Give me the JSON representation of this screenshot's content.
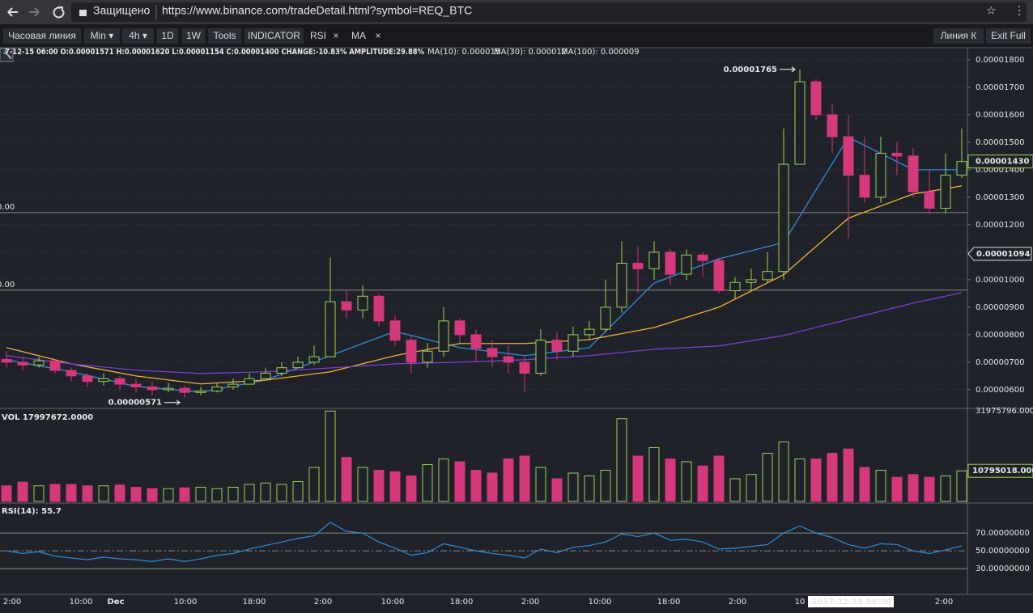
{
  "browser": {
    "secure": "Защищено",
    "url": "https://www.binance.com/tradeDetail.html?symbol=REQ_BTC"
  },
  "toolbar": {
    "items": [
      "Часовая линия",
      "Min ▾",
      "4h ▾",
      "1D",
      "1W",
      "Tools",
      "INDICATOR",
      "RSI",
      "×",
      "MA",
      "×"
    ],
    "right": [
      "Линия К",
      "Exit Full"
    ]
  },
  "time_axis": [
    "2:00",
    "10:00",
    "Dec",
    "10:00",
    "18:00",
    "2:00",
    "10:00",
    "18:00",
    "2:00",
    "10:00",
    "18:00",
    "2:00",
    "10",
    "2017-12-15 06:00",
    "2:00"
  ],
  "chart_data": [
    {
      "type": "candlestick",
      "info": "7-12-15 06:00   O:0.00001571 H:0.00001620 L:0.00001154 C:0.00001400 CHANGE:-10.83% AMPLITUDE:29.88%",
      "up_color": "#9ed45a",
      "down_color": "#d6387c",
      "xlim": [
        -0.4,
        59.35
      ],
      "ylim": [
        5.32e-06,
        1.835e-05
      ],
      "yticks": [
        {
          "value": 6e-06,
          "label": "0.00000600"
        },
        {
          "value": 7e-06,
          "label": "0.00000700"
        },
        {
          "value": 8e-06,
          "label": "0.00000800"
        },
        {
          "value": 9e-06,
          "label": "0.00000900"
        },
        {
          "value": 1e-05,
          "label": "0.00001000"
        },
        {
          "value": 1.1e-05,
          "label": "0.00001100"
        },
        {
          "value": 1.2e-05,
          "label": "0.00001200"
        },
        {
          "value": 1.3e-05,
          "label": "0.00001300"
        },
        {
          "value": 1.4e-05,
          "label": "0.00001400"
        },
        {
          "value": 1.5e-05,
          "label": "0.00001500"
        },
        {
          "value": 1.6e-05,
          "label": "0.00001600"
        },
        {
          "value": 1.7e-05,
          "label": "0.00001700"
        },
        {
          "value": 1.8e-05,
          "label": "0.00001800"
        }
      ],
      "grid": true,
      "open": [
        7.1e-06,
        7e-06,
        6.9e-06,
        7.05e-06,
        6.7e-06,
        6.5e-06,
        6.3e-06,
        6.4e-06,
        6.2e-06,
        6.1e-06,
        6e-06,
        6.05e-06,
        5.9e-06,
        5.95e-06,
        6.1e-06,
        6.2e-06,
        6.4e-06,
        6.6e-06,
        6.8e-06,
        7e-06,
        7.2e-06,
        9.2e-06,
        8.9e-06,
        9.4e-06,
        8.5e-06,
        7.8e-06,
        7e-06,
        7.4e-06,
        8.5e-06,
        8e-06,
        7.5e-06,
        7.2e-06,
        7e-06,
        6.6e-06,
        7.8e-06,
        7.4e-06,
        8e-06,
        8.2e-06,
        9e-06,
        1.06e-05,
        1.04e-05,
        1.1e-05,
        1.02e-05,
        1.09e-05,
        1.07e-05,
        9.6e-06,
        9.9e-06,
        1e-05,
        1.03e-05,
        1.42e-05,
        1.72e-05,
        1.6e-05,
        1.52e-05,
        1.38e-05,
        1.3e-05,
        1.46e-05,
        1.45e-05,
        1.32e-05,
        1.26e-05,
        1.38e-05
      ],
      "high": [
        7.4e-06,
        7.2e-06,
        7.2e-06,
        7.1e-06,
        6.8e-06,
        6.6e-06,
        6.6e-06,
        6.5e-06,
        6.4e-06,
        6.3e-06,
        6.25e-06,
        6.15e-06,
        6.1e-06,
        6.25e-06,
        6.4e-06,
        6.6e-06,
        6.8e-06,
        7e-06,
        7.2e-06,
        7.6e-06,
        1.08e-05,
        9.6e-06,
        9.8e-06,
        9.5e-06,
        8.7e-06,
        8e-06,
        7.7e-06,
        9e-06,
        8.6e-06,
        8.2e-06,
        7.8e-06,
        7.6e-06,
        7.2e-06,
        8.2e-06,
        8.1e-06,
        8.3e-06,
        8.5e-06,
        1e-05,
        1.14e-05,
        1.12e-05,
        1.14e-05,
        1.11e-05,
        1.11e-05,
        1.1e-05,
        1.08e-05,
        1.01e-05,
        1.04e-05,
        1.1e-05,
        1.55e-05,
        1.765e-05,
        1.73e-05,
        1.64e-05,
        1.6e-05,
        1.52e-05,
        1.52e-05,
        1.5e-05,
        1.48e-05,
        1.4e-05,
        1.46e-05,
        1.55e-05
      ],
      "low": [
        6.8e-06,
        6.7e-06,
        6.8e-06,
        6.6e-06,
        6.3e-06,
        6.1e-06,
        6.15e-06,
        6e-06,
        5.9e-06,
        5.8e-06,
        5.9e-06,
        5.71e-06,
        5.8e-06,
        5.9e-06,
        6e-06,
        6.2e-06,
        6.4e-06,
        6.5e-06,
        6.8e-06,
        6.9e-06,
        7.2e-06,
        8.6e-06,
        8.6e-06,
        8.3e-06,
        7.6e-06,
        6.6e-06,
        6.8e-06,
        7.2e-06,
        7.7e-06,
        7e-06,
        6.8e-06,
        6.6e-06,
        5.9e-06,
        6.5e-06,
        7.1e-06,
        7.2e-06,
        7.8e-06,
        8.1e-06,
        8.8e-06,
        9.5e-06,
        1e-05,
        9.8e-06,
        1e-05,
        1.01e-05,
        9.5e-06,
        9.3e-06,
        9.6e-06,
        9.9e-06,
        1e-05,
        1.42e-05,
        1.58e-05,
        1.46e-05,
        1.15e-05,
        1.28e-05,
        1.28e-05,
        1.38e-05,
        1.3e-05,
        1.24e-05,
        1.24e-05,
        1.37e-05
      ],
      "close": [
        7e-06,
        6.9e-06,
        7.05e-06,
        6.7e-06,
        6.5e-06,
        6.3e-06,
        6.4e-06,
        6.2e-06,
        6.1e-06,
        6e-06,
        6.05e-06,
        5.9e-06,
        5.95e-06,
        6.1e-06,
        6.2e-06,
        6.4e-06,
        6.6e-06,
        6.8e-06,
        7e-06,
        7.2e-06,
        9.2e-06,
        8.9e-06,
        9.4e-06,
        8.5e-06,
        7.8e-06,
        7e-06,
        7.4e-06,
        8.5e-06,
        8e-06,
        7.5e-06,
        7.2e-06,
        7e-06,
        6.6e-06,
        7.8e-06,
        7.4e-06,
        8e-06,
        8.2e-06,
        9e-06,
        1.06e-05,
        1.04e-05,
        1.1e-05,
        1.02e-05,
        1.09e-05,
        1.07e-05,
        9.6e-06,
        9.9e-06,
        1e-05,
        1.03e-05,
        1.42e-05,
        1.72e-05,
        1.6e-05,
        1.52e-05,
        1.38e-05,
        1.3e-05,
        1.46e-05,
        1.45e-05,
        1.32e-05,
        1.26e-05,
        1.38e-05,
        1.43e-05
      ],
      "ma_x": [
        0,
        4,
        8,
        12,
        16,
        20,
        24,
        28,
        32,
        36,
        40,
        44,
        48,
        52,
        56,
        59
      ],
      "series": [
        {
          "name": "MA(10): 0.000015",
          "color": "#2e8fe0",
          "values": [
            7.09e-06,
            6.65e-06,
            6.12e-06,
            5.91e-06,
            6.35e-06,
            7.24e-06,
            8.12e-06,
            7.53e-06,
            7.24e-06,
            7.53e-06,
            9.88e-06,
            1.076e-05,
            1.135e-05,
            1.518e-05,
            1.4e-05,
            1.4e-05
          ]
        },
        {
          "name": "MA(30): 0.000012",
          "color": "#f2b33d",
          "values": [
            7.53e-06,
            6.94e-06,
            6.5e-06,
            6.21e-06,
            6.35e-06,
            6.65e-06,
            7.24e-06,
            7.68e-06,
            7.68e-06,
            7.82e-06,
            8.26e-06,
            9e-06,
            1.018e-05,
            1.224e-05,
            1.312e-05,
            1.341e-05
          ]
        },
        {
          "name": "MA(100): 0.000009",
          "color": "#7b3fd6",
          "values": [
            7.24e-06,
            6.94e-06,
            6.71e-06,
            6.59e-06,
            6.65e-06,
            6.79e-06,
            6.94e-06,
            7e-06,
            7.09e-06,
            7.24e-06,
            7.47e-06,
            7.59e-06,
            7.97e-06,
            8.56e-06,
            9.15e-06,
            9.53e-06
          ]
        }
      ],
      "levels": [
        {
          "value": 1.244e-05,
          "label": "0.00"
        },
        {
          "value": 9.62e-06,
          "label": "0.00"
        }
      ],
      "annotations": [
        {
          "value": 1.765e-05,
          "label": "0.00001765"
        },
        {
          "value": 5.71e-06,
          "label": "0.00000571"
        }
      ],
      "last_price": {
        "value": 1.43e-05,
        "label": "0.00001430"
      },
      "crosshair": {
        "value": 1.094e-05,
        "label": "0.00001094"
      }
    },
    {
      "type": "bar",
      "title": "VOL 17997672.0000",
      "xlim": [
        -0.4,
        59.35
      ],
      "ylim": [
        0,
        32546792
      ],
      "yticks": [
        {
          "value": 31975796,
          "label": "31975796.000"
        }
      ],
      "values": [
        5500000,
        6800000,
        5500000,
        6000000,
        6000000,
        5500000,
        5500000,
        5800000,
        5000000,
        4500000,
        4500000,
        4800000,
        5000000,
        4500000,
        5000000,
        6000000,
        6500000,
        6000000,
        7000000,
        12000000,
        31900000,
        15500000,
        12000000,
        11000000,
        10500000,
        9000000,
        13000000,
        15000000,
        14000000,
        11000000,
        10000000,
        15000000,
        16000000,
        12000000,
        8000000,
        10000000,
        9000000,
        11000000,
        29200000,
        16000000,
        19000000,
        15000000,
        14000000,
        12500000,
        16000000,
        8000000,
        9500000,
        17000000,
        21000000,
        15000000,
        15000000,
        17000000,
        18500000,
        12000000,
        11000000,
        8500000,
        9500000,
        8500000,
        9000000,
        10795018
      ],
      "last": {
        "value": 10795018,
        "label": "10795018.000"
      }
    },
    {
      "type": "line",
      "title": "RSI(14): 55.7",
      "color": "#2e8fe0",
      "xlim": [
        -0.4,
        59.35
      ],
      "ylim": [
        1,
        102
      ],
      "yticks": [
        {
          "value": 70,
          "label": "70.00000000"
        },
        {
          "value": 50,
          "label": "50.00000000"
        },
        {
          "value": 30,
          "label": "30.00000000"
        }
      ],
      "values": [
        50,
        47,
        49,
        44,
        42,
        40,
        43,
        41,
        40,
        38,
        41,
        38,
        41,
        45,
        47,
        52,
        56,
        60,
        64,
        67,
        82,
        72,
        70,
        60,
        53,
        45,
        48,
        58,
        54,
        50,
        47,
        45,
        42,
        52,
        48,
        54,
        56,
        60,
        69,
        66,
        70,
        62,
        63,
        60,
        52,
        53,
        55,
        57,
        70,
        78,
        70,
        65,
        57,
        53,
        58,
        57,
        50,
        47,
        51,
        55.7
      ]
    }
  ]
}
